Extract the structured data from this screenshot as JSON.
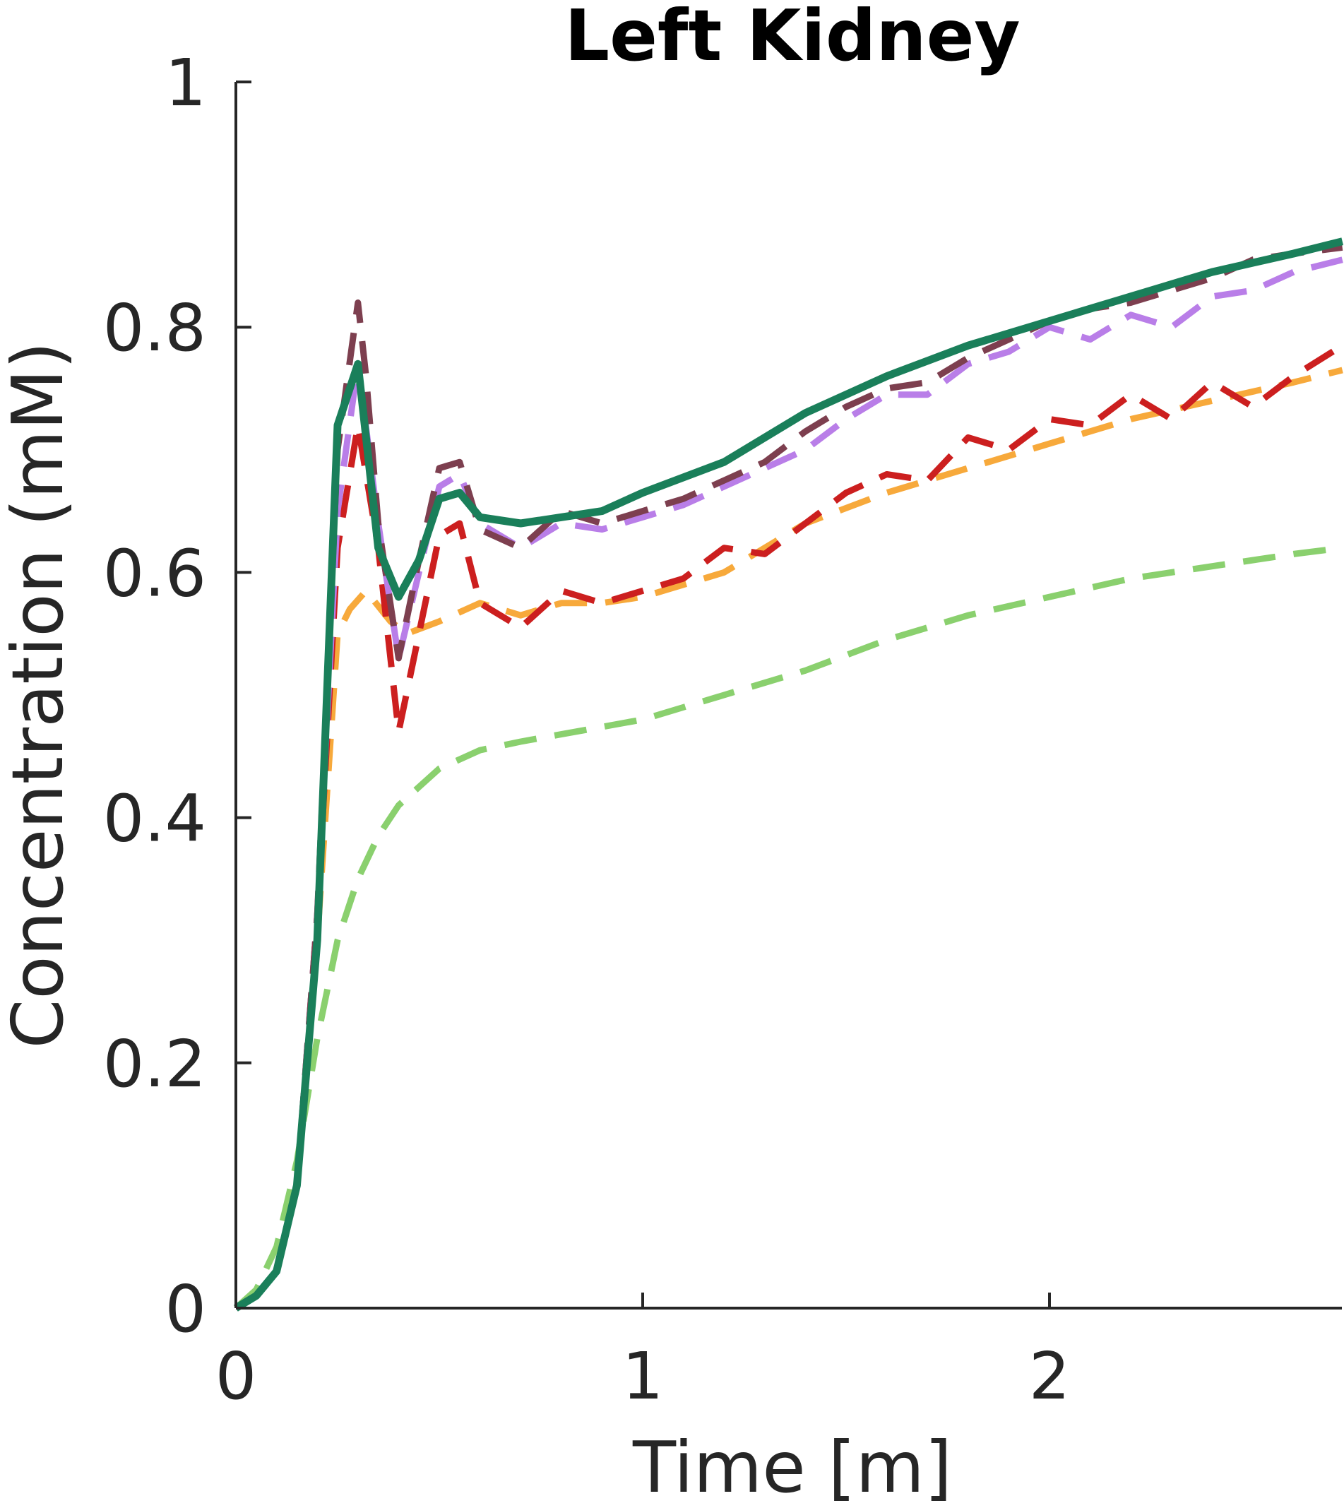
{
  "chart_data": {
    "type": "line",
    "title": "Left Kidney",
    "xlabel": "Time [m]",
    "ylabel": "Concentration (mM)",
    "xlim": [
      0,
      2.72
    ],
    "ylim": [
      0,
      1
    ],
    "xticks": [
      0,
      1,
      2
    ],
    "yticks": [
      0,
      0.2,
      0.4,
      0.6,
      0.8,
      1
    ],
    "xtick_labels": [
      "0",
      "1",
      "2"
    ],
    "ytick_labels": [
      "0",
      "0.2",
      "0.4",
      "0.6",
      "0.8",
      "1"
    ],
    "grid": false,
    "legend": "none",
    "series": [
      {
        "color": "#8ad06e",
        "style": "dashed",
        "x": [
          0,
          0.05,
          0.1,
          0.15,
          0.2,
          0.25,
          0.3,
          0.35,
          0.4,
          0.45,
          0.5,
          0.6,
          0.7,
          0.8,
          1.0,
          1.2,
          1.4,
          1.6,
          1.8,
          2.0,
          2.2,
          2.4,
          2.6,
          2.72
        ],
        "y": [
          0,
          0.015,
          0.05,
          0.12,
          0.22,
          0.3,
          0.35,
          0.385,
          0.41,
          0.425,
          0.44,
          0.455,
          0.462,
          0.468,
          0.48,
          0.5,
          0.52,
          0.545,
          0.565,
          0.58,
          0.595,
          0.605,
          0.615,
          0.62
        ]
      },
      {
        "color": "#f7a93b",
        "style": "dashed",
        "x": [
          0,
          0.05,
          0.1,
          0.15,
          0.2,
          0.25,
          0.28,
          0.32,
          0.38,
          0.42,
          0.5,
          0.6,
          0.7,
          0.8,
          0.9,
          1.0,
          1.2,
          1.4,
          1.6,
          1.8,
          2.0,
          2.2,
          2.4,
          2.6,
          2.72
        ],
        "y": [
          0,
          0.01,
          0.03,
          0.1,
          0.3,
          0.55,
          0.57,
          0.585,
          0.56,
          0.55,
          0.56,
          0.575,
          0.565,
          0.575,
          0.575,
          0.58,
          0.6,
          0.64,
          0.665,
          0.685,
          0.705,
          0.725,
          0.74,
          0.755,
          0.765
        ]
      },
      {
        "color": "#cc1f1f",
        "style": "dashed",
        "x": [
          0,
          0.05,
          0.1,
          0.15,
          0.2,
          0.25,
          0.3,
          0.35,
          0.4,
          0.45,
          0.5,
          0.55,
          0.6,
          0.7,
          0.8,
          0.9,
          1.0,
          1.1,
          1.2,
          1.3,
          1.4,
          1.5,
          1.6,
          1.7,
          1.8,
          1.9,
          2.0,
          2.1,
          2.2,
          2.3,
          2.4,
          2.5,
          2.6,
          2.72
        ],
        "y": [
          0,
          0.01,
          0.03,
          0.1,
          0.32,
          0.62,
          0.72,
          0.62,
          0.47,
          0.55,
          0.63,
          0.64,
          0.575,
          0.555,
          0.585,
          0.575,
          0.585,
          0.595,
          0.62,
          0.615,
          0.64,
          0.665,
          0.68,
          0.675,
          0.71,
          0.7,
          0.725,
          0.72,
          0.745,
          0.725,
          0.755,
          0.735,
          0.76,
          0.785
        ]
      },
      {
        "color": "#b97ee8",
        "style": "dashed",
        "x": [
          0,
          0.05,
          0.1,
          0.15,
          0.2,
          0.25,
          0.3,
          0.35,
          0.4,
          0.45,
          0.5,
          0.55,
          0.6,
          0.7,
          0.8,
          0.9,
          1.0,
          1.1,
          1.2,
          1.3,
          1.4,
          1.5,
          1.6,
          1.7,
          1.8,
          1.9,
          2.0,
          2.1,
          2.2,
          2.3,
          2.4,
          2.5,
          2.6,
          2.72
        ],
        "y": [
          0,
          0.01,
          0.03,
          0.1,
          0.32,
          0.65,
          0.77,
          0.64,
          0.53,
          0.6,
          0.67,
          0.68,
          0.64,
          0.62,
          0.64,
          0.635,
          0.645,
          0.655,
          0.67,
          0.685,
          0.7,
          0.725,
          0.745,
          0.745,
          0.77,
          0.78,
          0.8,
          0.79,
          0.81,
          0.8,
          0.825,
          0.83,
          0.845,
          0.855
        ]
      },
      {
        "color": "#7d3f4f",
        "style": "dashed",
        "x": [
          0,
          0.05,
          0.1,
          0.15,
          0.2,
          0.25,
          0.3,
          0.32,
          0.35,
          0.4,
          0.45,
          0.5,
          0.55,
          0.6,
          0.7,
          0.8,
          0.9,
          1.0,
          1.1,
          1.2,
          1.3,
          1.4,
          1.5,
          1.6,
          1.7,
          1.8,
          1.9,
          2.0,
          2.1,
          2.2,
          2.3,
          2.4,
          2.5,
          2.6,
          2.72
        ],
        "y": [
          0,
          0.01,
          0.03,
          0.1,
          0.32,
          0.7,
          0.82,
          0.76,
          0.64,
          0.53,
          0.61,
          0.685,
          0.69,
          0.635,
          0.62,
          0.65,
          0.64,
          0.65,
          0.66,
          0.675,
          0.69,
          0.715,
          0.735,
          0.75,
          0.755,
          0.775,
          0.79,
          0.805,
          0.815,
          0.82,
          0.83,
          0.84,
          0.855,
          0.86,
          0.865
        ]
      },
      {
        "color": "#1a7f5a",
        "style": "solid",
        "x": [
          0,
          0.05,
          0.1,
          0.15,
          0.2,
          0.25,
          0.3,
          0.35,
          0.4,
          0.45,
          0.5,
          0.55,
          0.6,
          0.7,
          0.8,
          0.9,
          1.0,
          1.2,
          1.4,
          1.6,
          1.8,
          2.0,
          2.2,
          2.4,
          2.6,
          2.72
        ],
        "y": [
          0,
          0.01,
          0.03,
          0.1,
          0.3,
          0.72,
          0.77,
          0.62,
          0.58,
          0.61,
          0.66,
          0.665,
          0.645,
          0.64,
          0.645,
          0.65,
          0.665,
          0.69,
          0.73,
          0.76,
          0.785,
          0.805,
          0.825,
          0.845,
          0.86,
          0.87
        ]
      }
    ]
  }
}
